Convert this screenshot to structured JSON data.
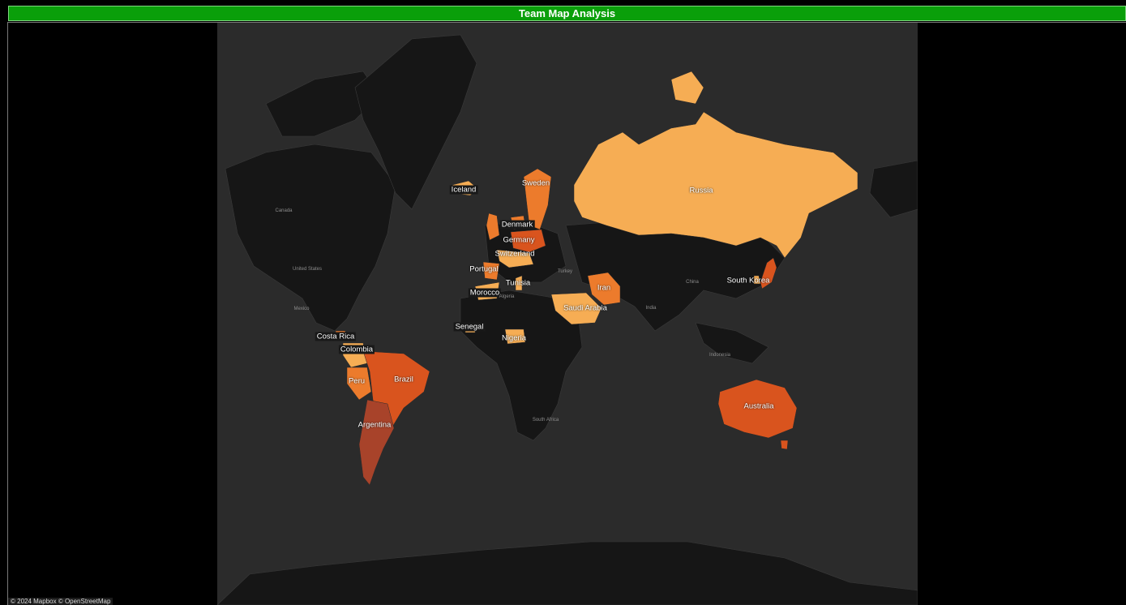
{
  "title": "Team Map Analysis",
  "attribution": "© 2024 Mapbox © OpenStreetMap",
  "colors": {
    "light": "#f6ad54",
    "mid": "#ec7b2c",
    "dark": "#d9541e",
    "darkest": "#a8432a",
    "land": "#161616",
    "ocean": "#2b2b2b"
  },
  "countries": [
    {
      "name": "Russia",
      "shade": "light"
    },
    {
      "name": "Iceland",
      "shade": "light"
    },
    {
      "name": "Sweden",
      "shade": "mid"
    },
    {
      "name": "Denmark",
      "shade": "mid"
    },
    {
      "name": "Germany",
      "shade": "dark"
    },
    {
      "name": "Switzerland",
      "shade": "light"
    },
    {
      "name": "Portugal",
      "shade": "mid"
    },
    {
      "name": "Tunisia",
      "shade": "light"
    },
    {
      "name": "Morocco",
      "shade": "light"
    },
    {
      "name": "Iran",
      "shade": "mid"
    },
    {
      "name": "Saudi Arabia",
      "shade": "light"
    },
    {
      "name": "South Korea",
      "shade": "light"
    },
    {
      "name": "Senegal",
      "shade": "light"
    },
    {
      "name": "Nigeria",
      "shade": "light"
    },
    {
      "name": "Costa Rica",
      "shade": "mid"
    },
    {
      "name": "Colombia",
      "shade": "light"
    },
    {
      "name": "Peru",
      "shade": "mid"
    },
    {
      "name": "Brazil",
      "shade": "dark"
    },
    {
      "name": "Argentina",
      "shade": "darkest"
    },
    {
      "name": "Australia",
      "shade": "dark"
    }
  ],
  "base_labels": [
    "Canada",
    "United States",
    "Mexico",
    "Algeria",
    "Turkey",
    "China",
    "India",
    "South Africa",
    "Indonesia"
  ]
}
